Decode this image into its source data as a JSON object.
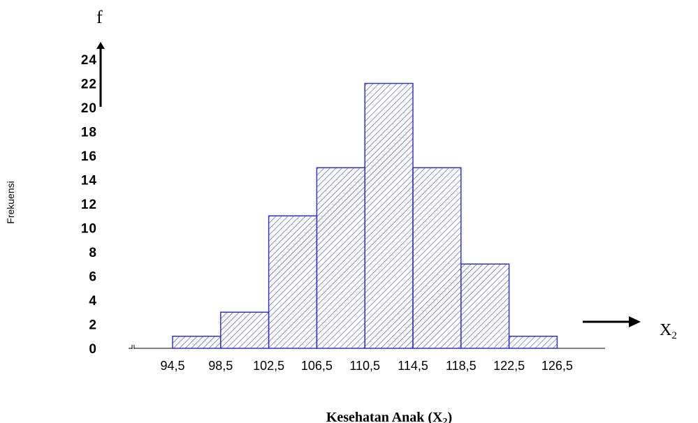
{
  "chart_data": {
    "type": "bar",
    "title": "",
    "xlabel": "Kesehatan Anak (X",
    "xlabel_sub": "2",
    "ylabel": "Frekuensi",
    "y_axis_symbol": "f",
    "x_axis_symbol": "X",
    "x_axis_symbol_sub": "2",
    "bin_edges": [
      94.5,
      98.5,
      102.5,
      106.5,
      110.5,
      114.5,
      118.5,
      122.5
    ],
    "values": [
      1,
      3,
      11,
      15,
      22,
      15,
      7,
      1
    ],
    "x_tick_labels": [
      "94,5",
      "98,5",
      "102,5",
      "106,5",
      "110,5",
      "114,5",
      "118,5",
      "122,5",
      "126,5"
    ],
    "y_ticks": [
      0,
      2,
      4,
      6,
      8,
      10,
      12,
      14,
      16,
      18,
      20,
      22,
      24
    ],
    "ylim": [
      0,
      24
    ],
    "grid": false,
    "bar_color": "#3333cc",
    "bar_fill": "hatched"
  }
}
